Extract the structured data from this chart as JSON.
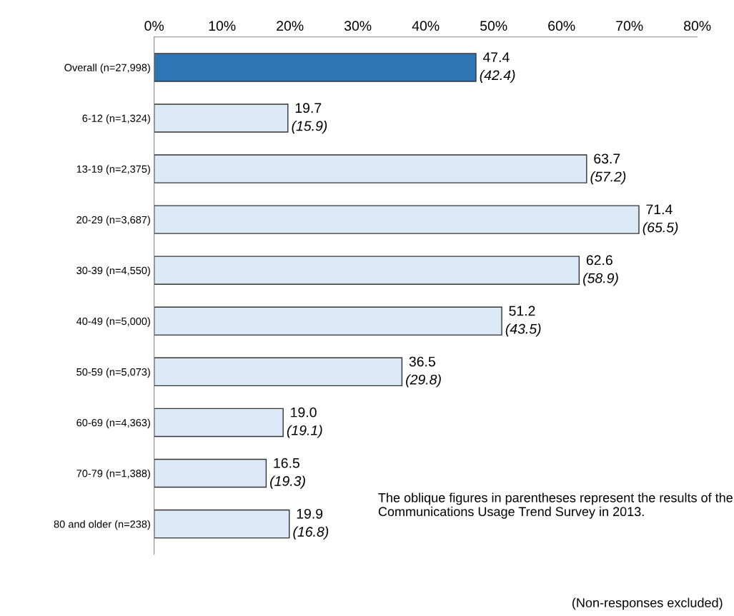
{
  "chart_data": {
    "type": "bar",
    "orientation": "horizontal",
    "categories": [
      "Overall (n=27,998)",
      "6-12 (n=1,324)",
      "13-19 (n=2,375)",
      "20-29 (n=3,687)",
      "30-39 (n=4,550)",
      "40-49 (n=5,000)",
      "50-59 (n=5,073)",
      "60-69 (n=4,363)",
      "70-79 (n=1,388)",
      "80 and older (n=238)"
    ],
    "values": [
      47.4,
      19.7,
      63.7,
      71.4,
      62.6,
      51.2,
      36.5,
      19.0,
      16.5,
      19.9
    ],
    "colors": [
      "#2e75b6",
      "#dce9f7",
      "#dce9f7",
      "#dce9f7",
      "#dce9f7",
      "#dce9f7",
      "#dce9f7",
      "#dce9f7",
      "#dce9f7",
      "#dce9f7"
    ],
    "value_labels": [
      "47.4\n(42.4)",
      "19.7\n(15.9)",
      "63.7\n(57.2)",
      "71.4\n(65.5)",
      "62.6\n(58.9)",
      "51.2\n(43.5)",
      "36.5\n(29.8)",
      "19.0\n(19.1)",
      "16.5\n(19.3)",
      "19.9\n(16.8)"
    ],
    "xlim": [
      0,
      80
    ],
    "xticks": [
      {
        "value": 0,
        "label": "0%"
      },
      {
        "value": 10,
        "label": "10%"
      },
      {
        "value": 20,
        "label": "20%"
      },
      {
        "value": 30,
        "label": "30%"
      },
      {
        "value": 40,
        "label": "40%"
      },
      {
        "value": 50,
        "label": "50%"
      },
      {
        "value": 60,
        "label": "60%"
      },
      {
        "value": 70,
        "label": "70%"
      },
      {
        "value": 80,
        "label": "80%"
      }
    ],
    "grid": false,
    "legend": false,
    "annotations": [
      "The oblique figures in parentheses represent the results of the Communications Usage Trend Survey in 2013.",
      "(Non-responses excluded)"
    ]
  }
}
